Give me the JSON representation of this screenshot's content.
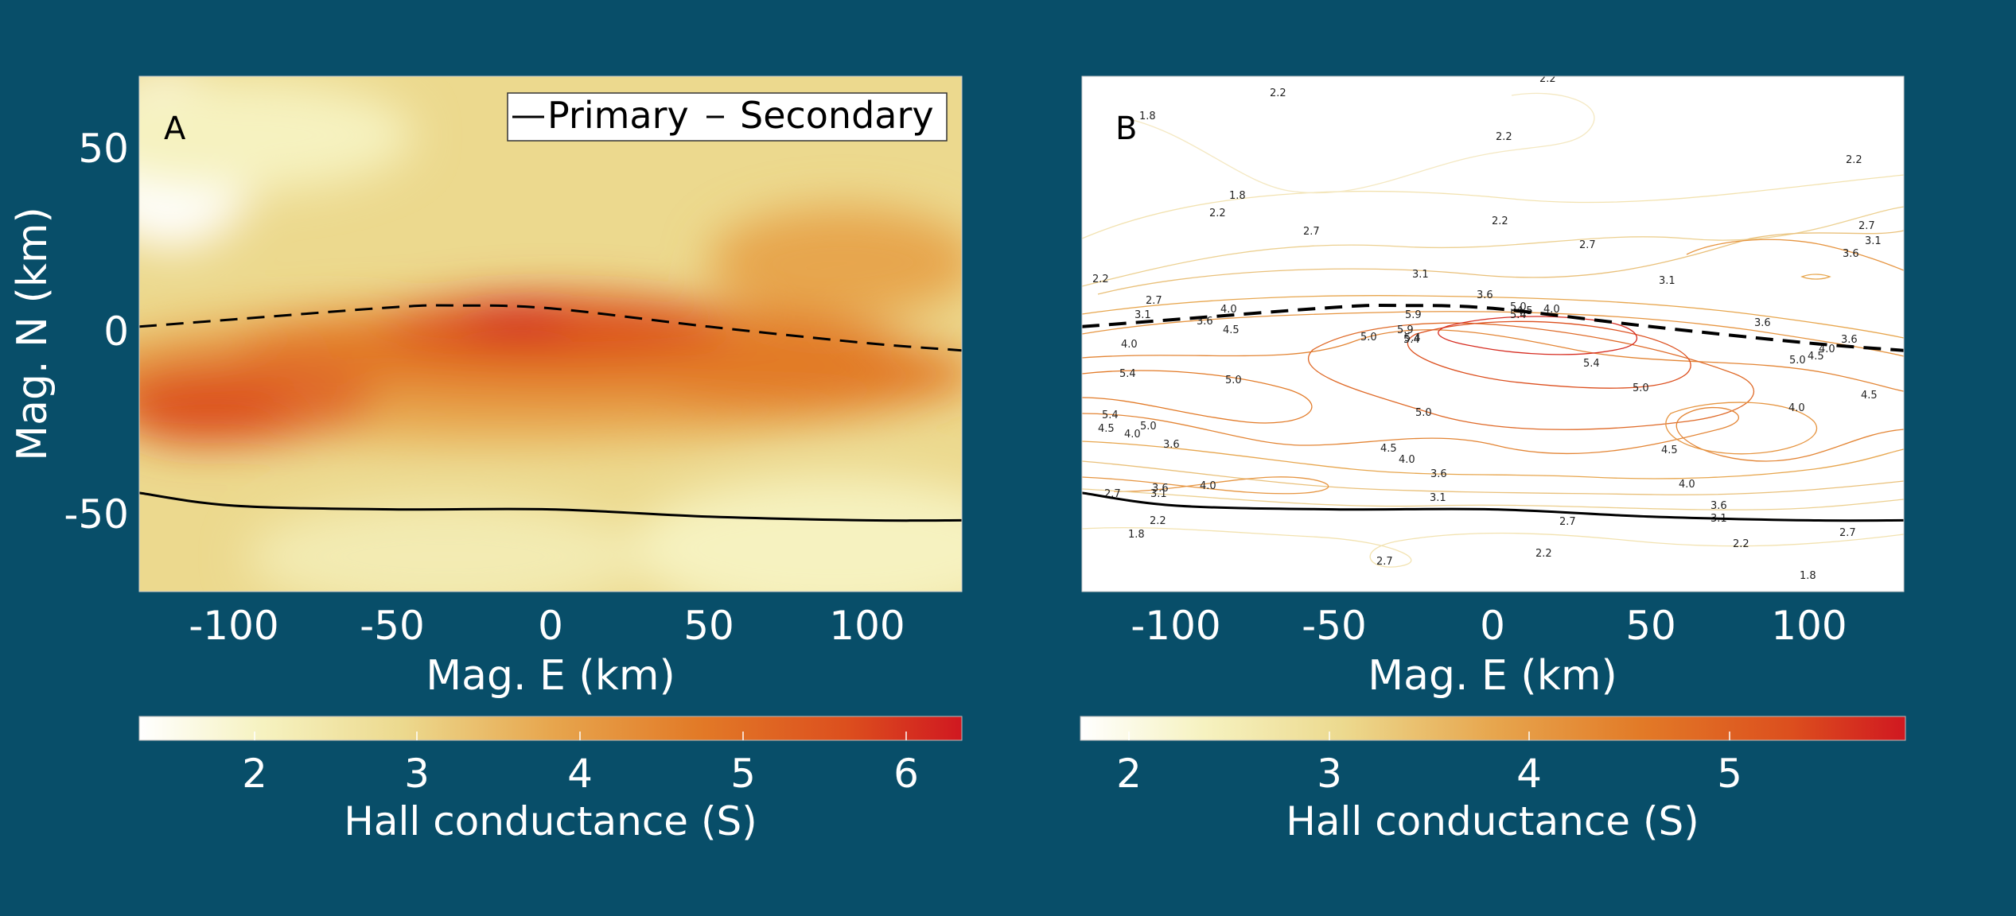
{
  "colors": {
    "background": "#084e69",
    "foreground": "#ffffff",
    "colormap": [
      "#ffffff",
      "#f6f2c0",
      "#ecd98e",
      "#e7a64e",
      "#e27a27",
      "#dc4f1e",
      "#d01820"
    ]
  },
  "chart_data": [
    {
      "type": "heatmap",
      "panel_label": "A",
      "title": "",
      "xlabel": "Mag. E (km)",
      "ylabel": "Mag. N (km)",
      "xlim": [
        -130,
        130
      ],
      "ylim": [
        -71,
        70
      ],
      "xticks": [
        "-100",
        "-50",
        "0",
        "50",
        "100"
      ],
      "yticks": [
        "50",
        "0",
        "-50"
      ],
      "legend": {
        "placement": "top-right",
        "entries": [
          "Primary",
          "Secondary"
        ]
      },
      "colorbar": {
        "label": "Hall conductance (S)",
        "range": [
          1.3,
          6.35
        ],
        "ticks": [
          "2",
          "3",
          "4",
          "5",
          "6"
        ]
      },
      "lines": [
        {
          "name": "Primary",
          "style": "solid",
          "x": [
            -130,
            -100,
            -50,
            0,
            50,
            100,
            130
          ],
          "y": [
            -44,
            -47.5,
            -48.5,
            -48.5,
            -50.5,
            -51.5,
            -51.5
          ]
        },
        {
          "name": "Secondary",
          "style": "dashed",
          "x": [
            -130,
            -100,
            -50,
            -30,
            0,
            50,
            100,
            130
          ],
          "y": [
            1.5,
            3.5,
            6.8,
            7.3,
            6.5,
            1.5,
            -3,
            -5
          ]
        }
      ]
    },
    {
      "type": "contour",
      "panel_label": "B",
      "title": "",
      "xlabel": "Mag. E (km)",
      "ylabel": "",
      "xlim": [
        -130,
        130
      ],
      "ylim": [
        -71,
        70
      ],
      "xticks": [
        "-100",
        "-50",
        "0",
        "50",
        "100"
      ],
      "colorbar": {
        "label": "Hall conductance (S)",
        "range": [
          1.75,
          5.9
        ],
        "ticks": [
          "2",
          "3",
          "4",
          "5"
        ]
      },
      "contour_levels": [
        "1.8",
        "2.2",
        "2.7",
        "3.1",
        "3.6",
        "4.0",
        "4.5",
        "5.0",
        "5.4",
        "5.9"
      ],
      "lines": [
        {
          "name": "Primary",
          "style": "solid",
          "x": [
            -130,
            -100,
            -50,
            0,
            50,
            100,
            130
          ],
          "y": [
            -44,
            -47.5,
            -48.5,
            -48.5,
            -50.5,
            -51.5,
            -51.5
          ]
        },
        {
          "name": "Secondary",
          "style": "dashed",
          "x": [
            -130,
            -100,
            -50,
            -30,
            0,
            50,
            100,
            130
          ],
          "y": [
            1.5,
            3.5,
            6.8,
            7.3,
            6.5,
            1.5,
            -3,
            -5
          ]
        }
      ]
    }
  ]
}
